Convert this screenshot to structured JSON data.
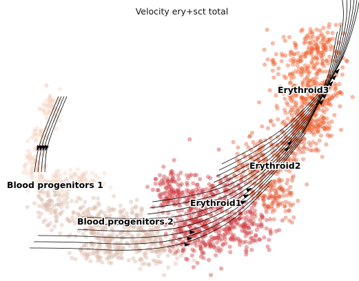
{
  "chart_data": {
    "type": "scatter",
    "title": "Velocity ery+sct total",
    "xlabel": "",
    "ylabel": "",
    "axes_visible": false,
    "grid": false,
    "legend": "on data",
    "overlay": "velocity streamlines",
    "clusters": [
      {
        "name": "Blood progenitors 1",
        "color": "#f3d3c2"
      },
      {
        "name": "Blood progenitors 2",
        "color": "#d8b7a6"
      },
      {
        "name": "Erythroid1",
        "color": "#cf3a3f"
      },
      {
        "name": "Erythroid2",
        "color": "#e35d36"
      },
      {
        "name": "Erythroid3",
        "color": "#ef5a27"
      }
    ]
  }
}
